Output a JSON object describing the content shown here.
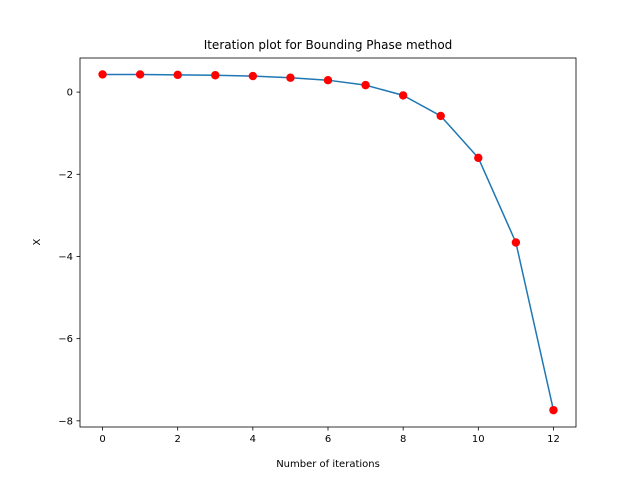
{
  "chart_data": {
    "type": "line",
    "title": "Iteration plot for Bounding Phase method",
    "xlabel": "Number of iterations",
    "ylabel": "X",
    "x": [
      0,
      1,
      2,
      3,
      4,
      5,
      6,
      7,
      8,
      9,
      10,
      11,
      12
    ],
    "series": [
      {
        "name": "X",
        "values": [
          0.43,
          0.43,
          0.42,
          0.41,
          0.39,
          0.35,
          0.29,
          0.17,
          -0.08,
          -0.58,
          -1.6,
          -3.66,
          -7.74
        ],
        "line_color": "#1f77b4",
        "marker_color": "#ff0000"
      }
    ],
    "xlim": [
      -0.6,
      12.6
    ],
    "ylim": [
      -8.15,
      0.83
    ],
    "xticks": [
      0,
      2,
      4,
      6,
      8,
      10,
      12
    ],
    "yticks": [
      0,
      -2,
      -4,
      -6,
      -8
    ],
    "xtick_labels": [
      "0",
      "2",
      "4",
      "6",
      "8",
      "10",
      "12"
    ],
    "ytick_labels": [
      "0",
      "−2",
      "−4",
      "−6",
      "−8"
    ],
    "grid": false,
    "legend": "none"
  }
}
